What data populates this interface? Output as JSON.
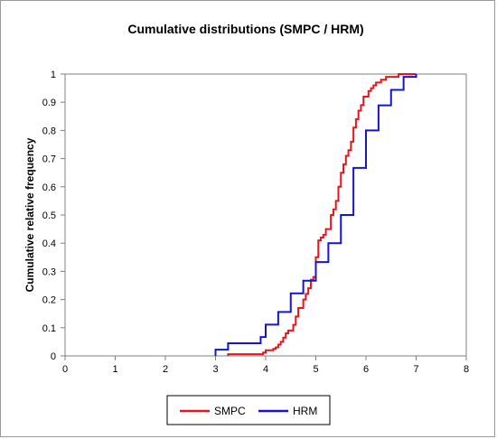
{
  "chart_data": {
    "type": "line",
    "title": "Cumulative distributions (SMPC / HRM)",
    "xlabel": "",
    "ylabel": "Cumulative relative frequency",
    "xlim": [
      0,
      8
    ],
    "ylim": [
      0,
      1
    ],
    "x_ticks": [
      "0",
      "1",
      "2",
      "3",
      "4",
      "5",
      "6",
      "7",
      "8"
    ],
    "y_ticks": [
      "0",
      "0.1",
      "0.2",
      "0.3",
      "0.4",
      "0.5",
      "0.6",
      "0.7",
      "0.8",
      "0.9",
      "1"
    ],
    "grid": false,
    "legend_position": "bottom",
    "step": true,
    "series": [
      {
        "name": "SMPC",
        "color": "#e8141c",
        "points": [
          [
            3.25,
            0.0
          ],
          [
            3.25,
            0.006
          ],
          [
            3.95,
            0.006
          ],
          [
            3.95,
            0.012
          ],
          [
            4.0,
            0.012
          ],
          [
            4.0,
            0.02
          ],
          [
            4.15,
            0.02
          ],
          [
            4.15,
            0.025
          ],
          [
            4.2,
            0.025
          ],
          [
            4.2,
            0.03
          ],
          [
            4.25,
            0.03
          ],
          [
            4.25,
            0.04
          ],
          [
            4.3,
            0.04
          ],
          [
            4.3,
            0.05
          ],
          [
            4.35,
            0.05
          ],
          [
            4.35,
            0.065
          ],
          [
            4.4,
            0.065
          ],
          [
            4.4,
            0.08
          ],
          [
            4.45,
            0.08
          ],
          [
            4.45,
            0.09
          ],
          [
            4.55,
            0.09
          ],
          [
            4.55,
            0.11
          ],
          [
            4.6,
            0.11
          ],
          [
            4.6,
            0.14
          ],
          [
            4.65,
            0.14
          ],
          [
            4.65,
            0.17
          ],
          [
            4.75,
            0.17
          ],
          [
            4.75,
            0.2
          ],
          [
            4.8,
            0.2
          ],
          [
            4.8,
            0.22
          ],
          [
            4.85,
            0.22
          ],
          [
            4.85,
            0.24
          ],
          [
            4.9,
            0.24
          ],
          [
            4.9,
            0.27
          ],
          [
            4.95,
            0.27
          ],
          [
            4.95,
            0.28
          ],
          [
            5.0,
            0.28
          ],
          [
            5.0,
            0.35
          ],
          [
            5.05,
            0.35
          ],
          [
            5.05,
            0.41
          ],
          [
            5.1,
            0.41
          ],
          [
            5.1,
            0.42
          ],
          [
            5.15,
            0.42
          ],
          [
            5.15,
            0.43
          ],
          [
            5.2,
            0.43
          ],
          [
            5.2,
            0.45
          ],
          [
            5.3,
            0.45
          ],
          [
            5.3,
            0.5
          ],
          [
            5.35,
            0.5
          ],
          [
            5.35,
            0.52
          ],
          [
            5.4,
            0.52
          ],
          [
            5.4,
            0.55
          ],
          [
            5.45,
            0.55
          ],
          [
            5.45,
            0.6
          ],
          [
            5.5,
            0.6
          ],
          [
            5.5,
            0.65
          ],
          [
            5.55,
            0.65
          ],
          [
            5.55,
            0.68
          ],
          [
            5.6,
            0.68
          ],
          [
            5.6,
            0.71
          ],
          [
            5.65,
            0.71
          ],
          [
            5.65,
            0.73
          ],
          [
            5.7,
            0.73
          ],
          [
            5.7,
            0.76
          ],
          [
            5.75,
            0.76
          ],
          [
            5.75,
            0.81
          ],
          [
            5.8,
            0.81
          ],
          [
            5.8,
            0.84
          ],
          [
            5.85,
            0.84
          ],
          [
            5.85,
            0.87
          ],
          [
            5.9,
            0.87
          ],
          [
            5.9,
            0.89
          ],
          [
            5.95,
            0.89
          ],
          [
            5.95,
            0.92
          ],
          [
            6.05,
            0.92
          ],
          [
            6.05,
            0.94
          ],
          [
            6.1,
            0.94
          ],
          [
            6.1,
            0.95
          ],
          [
            6.15,
            0.95
          ],
          [
            6.15,
            0.96
          ],
          [
            6.2,
            0.96
          ],
          [
            6.2,
            0.97
          ],
          [
            6.3,
            0.97
          ],
          [
            6.3,
            0.98
          ],
          [
            6.4,
            0.98
          ],
          [
            6.4,
            0.99
          ],
          [
            6.65,
            0.99
          ],
          [
            6.65,
            1.0
          ],
          [
            7.0,
            1.0
          ]
        ]
      },
      {
        "name": "HRM",
        "color": "#1414d2",
        "points": [
          [
            3.0,
            0.0
          ],
          [
            3.0,
            0.022
          ],
          [
            3.25,
            0.022
          ],
          [
            3.25,
            0.045
          ],
          [
            3.9,
            0.045
          ],
          [
            3.9,
            0.067
          ],
          [
            4.0,
            0.067
          ],
          [
            4.0,
            0.111
          ],
          [
            4.25,
            0.111
          ],
          [
            4.25,
            0.156
          ],
          [
            4.5,
            0.156
          ],
          [
            4.5,
            0.222
          ],
          [
            4.75,
            0.222
          ],
          [
            4.75,
            0.267
          ],
          [
            5.0,
            0.267
          ],
          [
            5.0,
            0.333
          ],
          [
            5.25,
            0.333
          ],
          [
            5.25,
            0.4
          ],
          [
            5.5,
            0.4
          ],
          [
            5.5,
            0.5
          ],
          [
            5.75,
            0.5
          ],
          [
            5.75,
            0.667
          ],
          [
            6.0,
            0.667
          ],
          [
            6.0,
            0.8
          ],
          [
            6.25,
            0.8
          ],
          [
            6.25,
            0.889
          ],
          [
            6.5,
            0.889
          ],
          [
            6.5,
            0.944
          ],
          [
            6.75,
            0.944
          ],
          [
            6.75,
            0.99
          ],
          [
            7.0,
            0.99
          ],
          [
            7.0,
            1.0
          ]
        ]
      }
    ]
  }
}
